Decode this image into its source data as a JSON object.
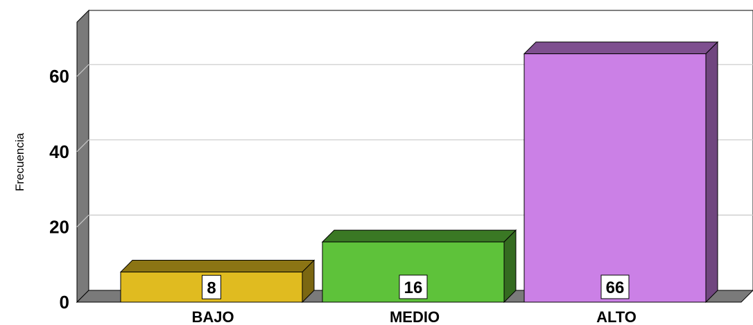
{
  "chart_data": {
    "type": "bar",
    "categories": [
      "BAJO",
      "MEDIO",
      "ALTO"
    ],
    "values": [
      8,
      16,
      66
    ],
    "data_labels": [
      "8",
      "16",
      "66"
    ],
    "colors": [
      "#E0BB20",
      "#5EC23A",
      "#CB80E6"
    ],
    "ylabel": "Frecuencia",
    "xlabel": "",
    "ylim": [
      0,
      74
    ],
    "yticks": [
      0,
      20,
      40,
      60
    ],
    "grid": true,
    "style": "3d"
  }
}
